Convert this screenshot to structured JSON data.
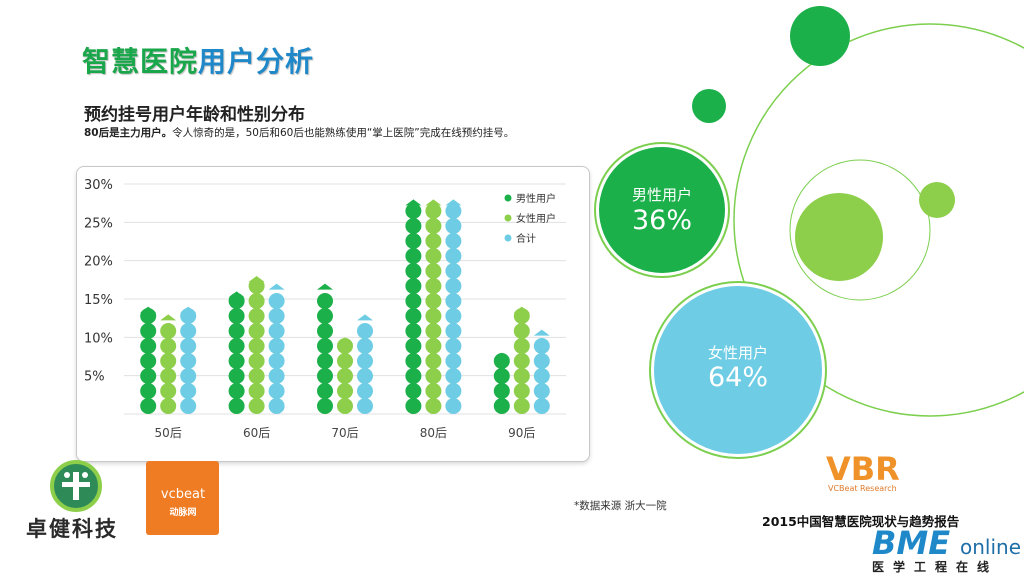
{
  "page": {
    "title_part1": "智慧医院",
    "title_part2": "用户分析",
    "section_title": "预约挂号用户年龄和性别分布",
    "subtitle_bold": "80后是主力用户。",
    "subtitle_rest": "令人惊奇的是，50后和60后也能熟练使用“掌上医院”完成在线预约挂号。",
    "source": "*数据来源 浙大一院",
    "report_title": "2015中国智慧医院现状与趋势报告"
  },
  "logos": {
    "zhuojian": "卓健科技",
    "vcbeat": "vcbeat",
    "vcbeat_cn": "动脉网",
    "vbr": "VBR",
    "vbr_sub": "VCBeat Research",
    "bme_main": "BME",
    "bme_online": "online",
    "bme_sub": "医学工程在线"
  },
  "gender": {
    "male_label": "男性用户",
    "male_value": "36%",
    "female_label": "女性用户",
    "female_value": "64%"
  },
  "colors": {
    "male": "#1bb04a",
    "female": "#8dcf4a",
    "total": "#6ecde4",
    "title_green": "#1aa64a",
    "title_blue": "#1e88c9",
    "line_green": "#7ccf4e"
  },
  "chart_data": {
    "type": "bar",
    "categories": [
      "50后",
      "60后",
      "70后",
      "80后",
      "90后"
    ],
    "series": [
      {
        "name": "男性用户",
        "values": [
          14,
          16,
          17,
          28,
          8
        ]
      },
      {
        "name": "女性用户",
        "values": [
          13,
          18,
          10,
          28,
          14
        ]
      },
      {
        "name": "合计",
        "values": [
          14,
          17,
          13,
          28,
          11
        ]
      }
    ],
    "y_ticks": [
      "30%",
      "25%",
      "20%",
      "15%",
      "10%",
      "5%"
    ],
    "ylim": [
      0,
      30
    ],
    "grid": true,
    "legend": "top-right"
  }
}
